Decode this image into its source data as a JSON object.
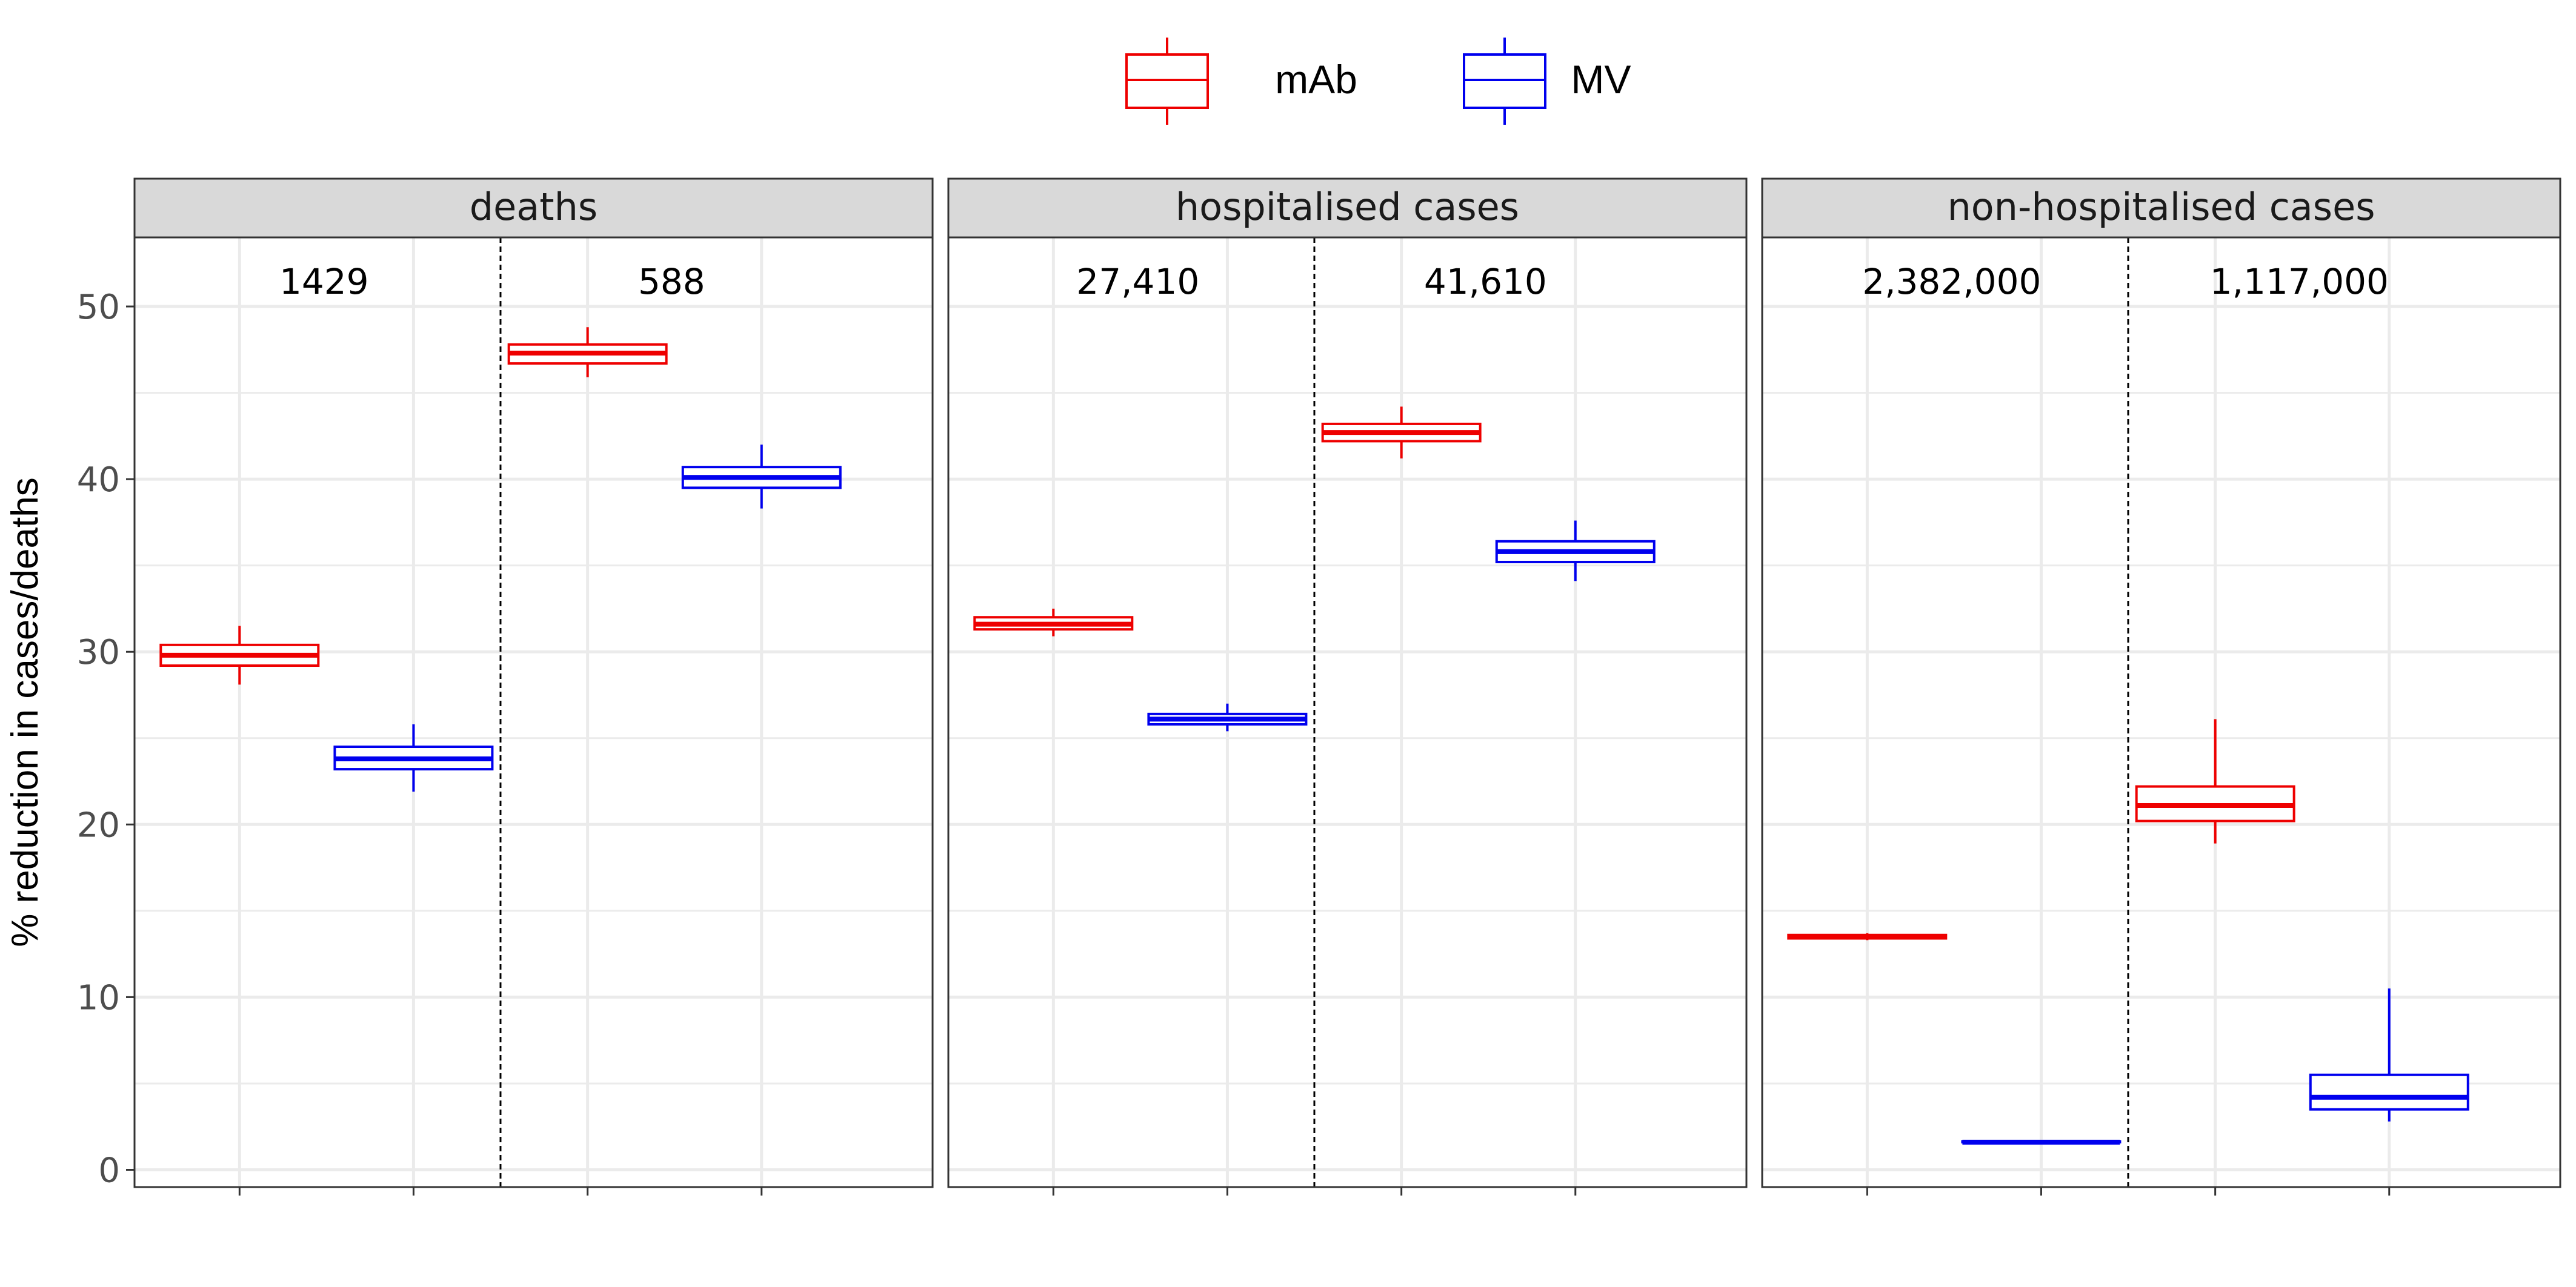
{
  "chart_data": {
    "type": "boxplot",
    "ylabel": "% reduction in cases/deaths",
    "ylim": [
      -1,
      54
    ],
    "y_ticks": [
      0,
      10,
      20,
      30,
      40,
      50
    ],
    "grid": true,
    "legend": {
      "placement": "top-center",
      "entries": [
        {
          "name": "mAb",
          "color": "#ee0000"
        },
        {
          "name": "MV",
          "color": "#0000ee"
        }
      ]
    },
    "panels": [
      {
        "title": "deaths",
        "annotations": [
          "1429",
          "588"
        ],
        "boxes": [
          {
            "series": "mAb",
            "group": 0,
            "min": 28.1,
            "q1": 29.2,
            "median": 29.8,
            "q3": 30.4,
            "max": 31.5
          },
          {
            "series": "MV",
            "group": 0,
            "min": 21.9,
            "q1": 23.2,
            "median": 23.8,
            "q3": 24.5,
            "max": 25.8
          },
          {
            "series": "mAb",
            "group": 1,
            "min": 45.9,
            "q1": 46.7,
            "median": 47.3,
            "q3": 47.8,
            "max": 48.8
          },
          {
            "series": "MV",
            "group": 1,
            "min": 38.3,
            "q1": 39.5,
            "median": 40.1,
            "q3": 40.7,
            "max": 42.0
          }
        ]
      },
      {
        "title": "hospitalised cases",
        "annotations": [
          "27,410",
          "41,610"
        ],
        "boxes": [
          {
            "series": "mAb",
            "group": 0,
            "min": 30.9,
            "q1": 31.3,
            "median": 31.6,
            "q3": 32.0,
            "max": 32.5
          },
          {
            "series": "MV",
            "group": 0,
            "min": 25.4,
            "q1": 25.8,
            "median": 26.1,
            "q3": 26.4,
            "max": 27.0
          },
          {
            "series": "mAb",
            "group": 1,
            "min": 41.2,
            "q1": 42.2,
            "median": 42.7,
            "q3": 43.2,
            "max": 44.2
          },
          {
            "series": "MV",
            "group": 1,
            "min": 34.1,
            "q1": 35.2,
            "median": 35.8,
            "q3": 36.4,
            "max": 37.6
          }
        ]
      },
      {
        "title": "non-hospitalised cases",
        "annotations": [
          "2,382,000",
          "1,117,000"
        ],
        "boxes": [
          {
            "series": "mAb",
            "group": 0,
            "min": 13.3,
            "q1": 13.4,
            "median": 13.5,
            "q3": 13.6,
            "max": 13.7
          },
          {
            "series": "MV",
            "group": 0,
            "min": 1.6,
            "q1": 1.6,
            "median": 1.6,
            "q3": 1.65,
            "max": 1.7
          },
          {
            "series": "mAb",
            "group": 1,
            "min": 18.9,
            "q1": 20.2,
            "median": 21.1,
            "q3": 22.2,
            "max": 26.1
          },
          {
            "series": "MV",
            "group": 1,
            "min": 2.8,
            "q1": 3.5,
            "median": 4.2,
            "q3": 5.5,
            "max": 10.5
          }
        ]
      }
    ]
  }
}
